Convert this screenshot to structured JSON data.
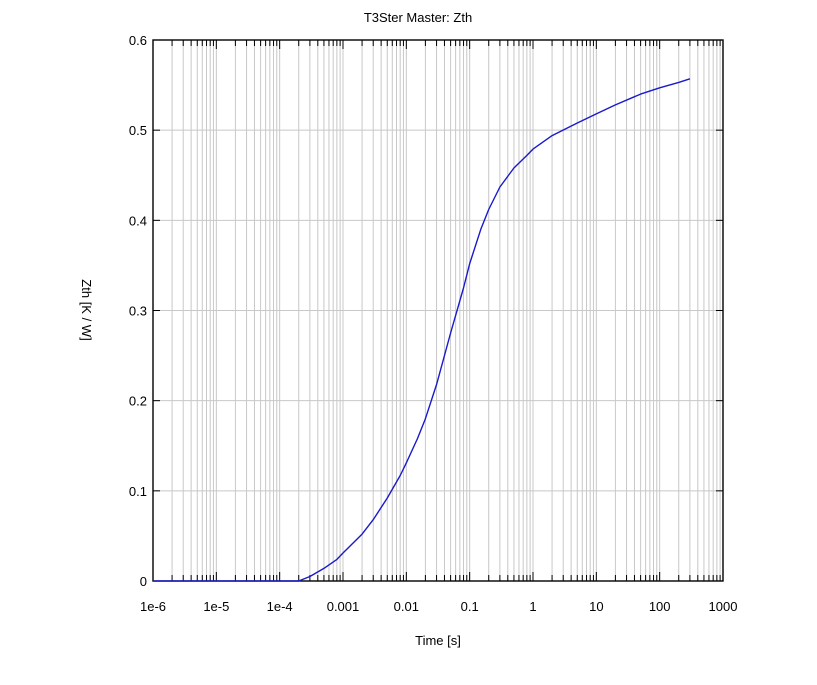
{
  "chart_data": {
    "type": "line",
    "title": "T3Ster Master: Zth",
    "xlabel": "Time [s]",
    "ylabel": "Zth [K / W]",
    "x_scale": "log",
    "xlim": [
      1e-06,
      1000
    ],
    "ylim": [
      0,
      0.6
    ],
    "grid": true,
    "legend": "none",
    "x_ticks": [
      1e-06,
      1e-05,
      0.0001,
      0.001,
      0.01,
      0.1,
      1,
      10,
      100,
      1000
    ],
    "x_tick_labels": [
      "1e-6",
      "1e-5",
      "1e-4",
      "0.001",
      "0.01",
      "0.1",
      "1",
      "10",
      "100",
      "1000"
    ],
    "y_ticks": [
      0,
      0.1,
      0.2,
      0.3,
      0.4,
      0.5,
      0.6
    ],
    "y_tick_labels": [
      "0",
      "0.1",
      "0.2",
      "0.3",
      "0.4",
      "0.5",
      "0.6"
    ],
    "series": [
      {
        "color": "#1a1acc",
        "x": [
          1e-06,
          1e-05,
          0.0001,
          0.0002,
          0.0003,
          0.0005,
          0.0008,
          0.001,
          0.002,
          0.003,
          0.005,
          0.008,
          0.01,
          0.015,
          0.02,
          0.03,
          0.05,
          0.08,
          0.1,
          0.15,
          0.2,
          0.3,
          0.5,
          0.8,
          1,
          2,
          5,
          10,
          20,
          50,
          100,
          200,
          300
        ],
        "y": [
          0,
          0,
          0,
          0,
          0.005,
          0.014,
          0.024,
          0.031,
          0.052,
          0.068,
          0.092,
          0.117,
          0.131,
          0.158,
          0.18,
          0.218,
          0.275,
          0.325,
          0.352,
          0.39,
          0.412,
          0.437,
          0.458,
          0.472,
          0.479,
          0.494,
          0.508,
          0.518,
          0.528,
          0.54,
          0.547,
          0.553,
          0.557
        ]
      }
    ]
  }
}
